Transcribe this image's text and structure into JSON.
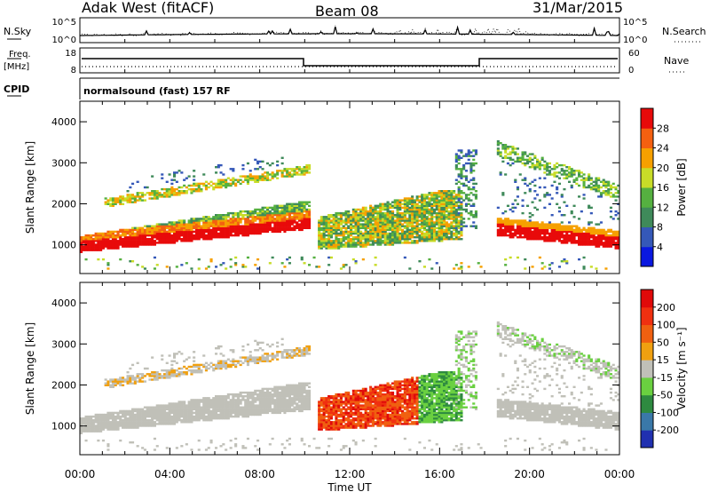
{
  "header": {
    "station": "Adak West (fitACF)",
    "beam": "Beam 08",
    "date": "31/Mar/2015"
  },
  "strips": {
    "nsky": {
      "label": "N.Sky",
      "top_tick": "10^5",
      "bottom_tick": "10^0"
    },
    "nsearch": {
      "label": "N.Search",
      "top_tick": "10^5",
      "bottom_tick": "10^0"
    },
    "freq": {
      "label_line1": "Freq.",
      "label_line2": "[MHz]",
      "ticks": [
        "18",
        "8"
      ]
    },
    "nave": {
      "label": "Nave",
      "ticks": [
        "60",
        "0"
      ]
    },
    "cpid": {
      "label": "CPID",
      "text": "normalsound (fast) 157 RF"
    }
  },
  "chart_data": [
    {
      "type": "heatmap",
      "panel": "power",
      "ylabel": "Slant Range [km]",
      "xlabel": "",
      "ylim": [
        300,
        4500
      ],
      "y_ticks": [
        "1000",
        "2000",
        "3000",
        "4000"
      ],
      "colorbar": {
        "label": "Power [dB]",
        "ticks": [
          "28",
          "24",
          "20",
          "16",
          "12",
          "8",
          "4"
        ]
      }
    },
    {
      "type": "heatmap",
      "panel": "velocity",
      "ylabel": "Slant Range [km]",
      "xlabel": "Time UT",
      "ylim": [
        300,
        4500
      ],
      "y_ticks": [
        "1000",
        "2000",
        "3000",
        "4000"
      ],
      "x_ticks": [
        "00:00",
        "04:00",
        "08:00",
        "12:00",
        "16:00",
        "20:00",
        "00:00"
      ],
      "colorbar": {
        "label": "Velocity [m s⁻¹]",
        "ticks": [
          "200",
          "100",
          "50",
          "15",
          "-15",
          "-50",
          "-100",
          "-200"
        ]
      }
    }
  ],
  "colors": {
    "power_scale": [
      "#0a18e0",
      "#3558b8",
      "#3f8a5a",
      "#55b040",
      "#c8dc28",
      "#f6a000",
      "#f46010",
      "#e80a0a"
    ],
    "velocity_scale": [
      "#2030b0",
      "#3a78a8",
      "#2e8a40",
      "#6ad040",
      "#c0c0b8",
      "#f0a010",
      "#f06010",
      "#f03010",
      "#e00a0a"
    ]
  }
}
